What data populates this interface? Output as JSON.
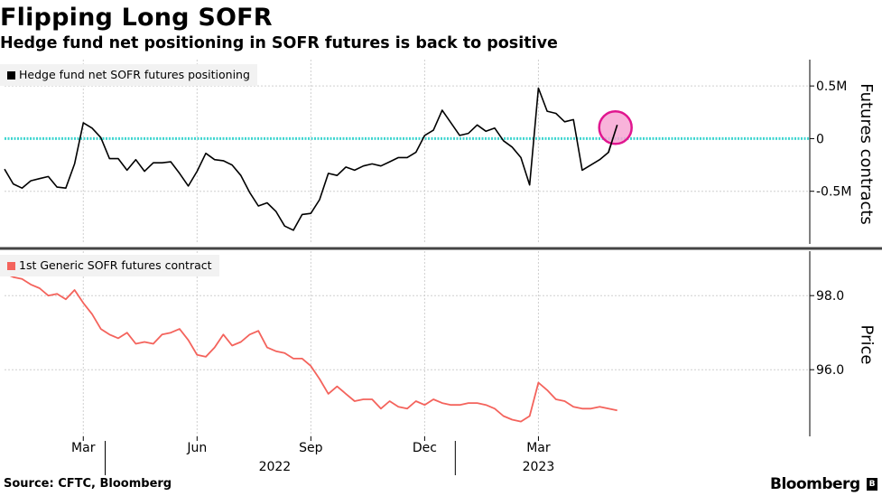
{
  "header": {
    "title": "Flipping Long SOFR",
    "subtitle": "Hedge fund net positioning in SOFR futures is back to positive"
  },
  "footer": {
    "source": "Source: CFTC, Bloomberg",
    "brand": "Bloomberg",
    "brand_mark": "B"
  },
  "colors": {
    "positioning_line": "#000000",
    "price_line": "#f4635c",
    "zero_line": "#3fd6d0",
    "highlight_fill": "#f7a6d4",
    "highlight_stroke": "#e0168f",
    "grid": "#cfcfcf",
    "panel_divider": "#444444"
  },
  "chart_data": [
    {
      "type": "line",
      "legend": "Hedge fund net SOFR futures positioning",
      "ylabel": "Futures contracts",
      "ytick_labels": [
        "0.5M",
        "0",
        "-0.5M"
      ],
      "yticks": [
        500000,
        0,
        -500000
      ],
      "ylim": [
        -1000000,
        750000
      ],
      "reference_line": 0,
      "highlight": "latest observation circled",
      "x": [
        0,
        1,
        2,
        3,
        4,
        5,
        6,
        7,
        8,
        9,
        10,
        11,
        12,
        13,
        14,
        15,
        16,
        17,
        18,
        19,
        20,
        21,
        22,
        23,
        24,
        25,
        26,
        27,
        28,
        29,
        30,
        31,
        32,
        33,
        34,
        35,
        36,
        37,
        38,
        39,
        40,
        41,
        42,
        43,
        44,
        45,
        46,
        47,
        48,
        49,
        50,
        51,
        52,
        53,
        54,
        55,
        56,
        57,
        58,
        59,
        60,
        61,
        62,
        63,
        64,
        65,
        66,
        67,
        68,
        69,
        70,
        71,
        72,
        73,
        74,
        75,
        76,
        77,
        78,
        79,
        80,
        81,
        82,
        83,
        84,
        85,
        86,
        87,
        88,
        89,
        90,
        91,
        92
      ],
      "values": [
        -290000,
        -430000,
        -470000,
        -400000,
        -380000,
        -360000,
        -460000,
        -470000,
        -240000,
        150000,
        100000,
        10000,
        -190000,
        -190000,
        -300000,
        -200000,
        -310000,
        -230000,
        -230000,
        -220000,
        -330000,
        -450000,
        -310000,
        -140000,
        -200000,
        -210000,
        -250000,
        -350000,
        -510000,
        -640000,
        -610000,
        -690000,
        -830000,
        -870000,
        -720000,
        -710000,
        -580000,
        -330000,
        -350000,
        -270000,
        -300000,
        -260000,
        -240000,
        -260000,
        -220000,
        -180000,
        -180000,
        -130000,
        30000,
        80000,
        270000,
        150000,
        30000,
        50000,
        130000,
        70000,
        100000,
        -20000,
        -80000,
        -180000,
        -440000,
        480000,
        260000,
        240000,
        160000,
        180000,
        -300000,
        -250000,
        -200000,
        -130000,
        130000,
        null,
        null,
        null,
        null,
        null,
        null,
        null,
        null,
        null,
        null,
        null,
        null,
        null,
        null,
        null,
        null,
        null,
        null,
        null,
        null,
        null,
        null
      ]
    },
    {
      "type": "line",
      "legend": "1st Generic SOFR futures contract",
      "ylabel": "Price",
      "ytick_labels": [
        "98.0",
        "96.0"
      ],
      "yticks": [
        98.0,
        96.0
      ],
      "ylim": [
        94.2,
        99.2
      ],
      "x_tick_labels": [
        "Mar",
        "Jun",
        "Sep",
        "Dec",
        "Mar"
      ],
      "x_year_labels": [
        "2022",
        "2023"
      ],
      "values": [
        98.6,
        98.5,
        98.45,
        98.3,
        98.2,
        98.0,
        98.05,
        97.9,
        98.15,
        97.8,
        97.5,
        97.1,
        96.95,
        96.85,
        97.0,
        96.7,
        96.75,
        96.7,
        96.95,
        97.0,
        97.1,
        96.8,
        96.4,
        96.35,
        96.6,
        96.95,
        96.65,
        96.75,
        96.95,
        97.05,
        96.6,
        96.5,
        96.45,
        96.3,
        96.3,
        96.1,
        95.75,
        95.35,
        95.55,
        95.35,
        95.15,
        95.2,
        95.2,
        94.95,
        95.15,
        95.0,
        94.95,
        95.15,
        95.05,
        95.2,
        95.1,
        95.05,
        95.05,
        95.1,
        95.1,
        95.05,
        94.95,
        94.75,
        94.65,
        94.6,
        94.75,
        95.65,
        95.45,
        95.2,
        95.15,
        95.0,
        94.95,
        94.95,
        95.0,
        94.95,
        94.9
      ]
    }
  ]
}
